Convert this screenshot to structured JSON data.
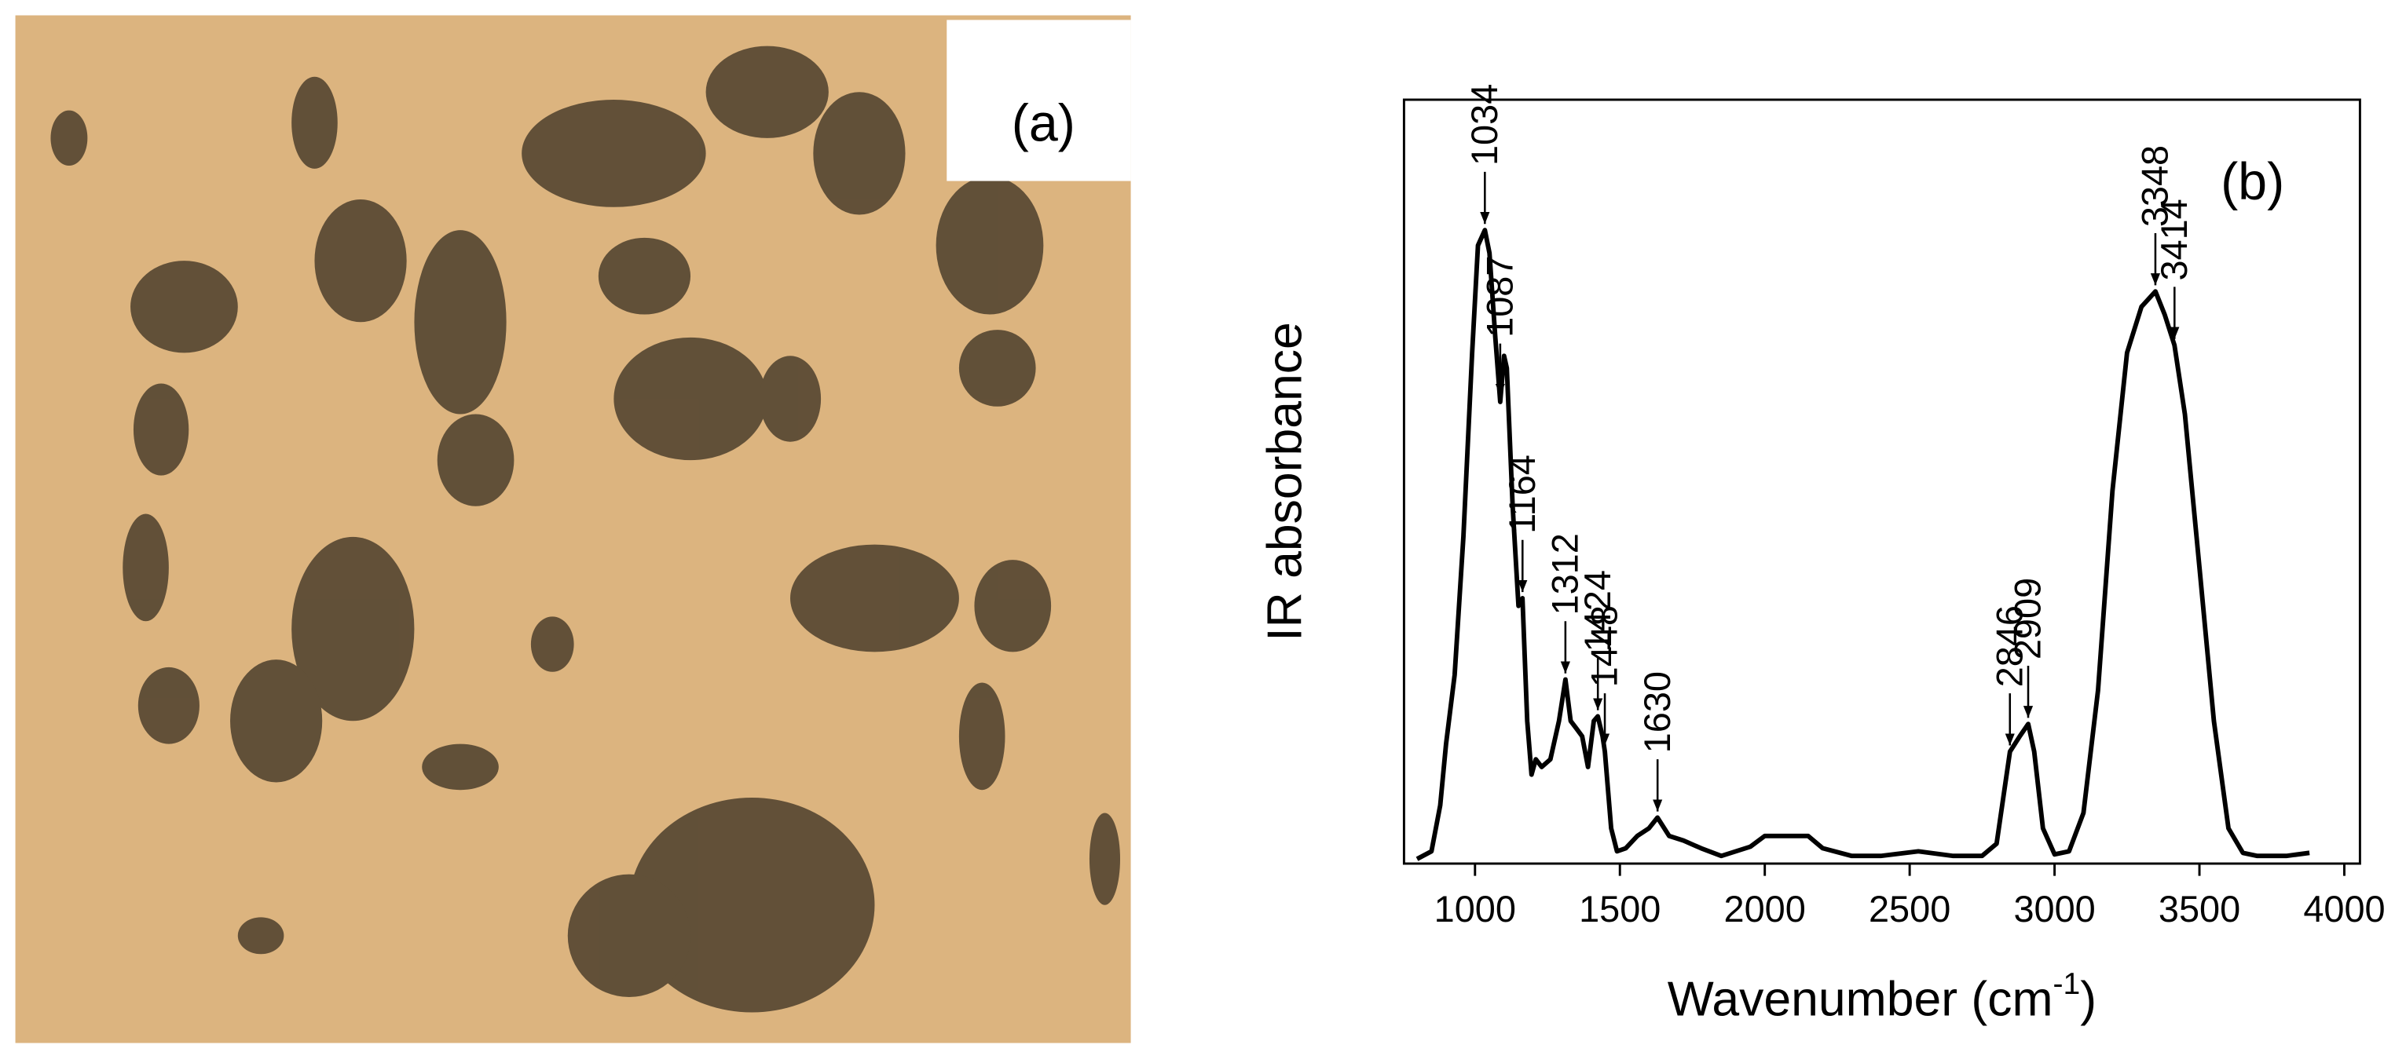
{
  "panel_a": {
    "label": "(a)"
  },
  "chart_data": {
    "type": "line",
    "panel_label": "(b)",
    "xlabel": {
      "text": "Wavenumber (cm",
      "sup": "-1",
      "end": ")"
    },
    "ylabel": "IR absorbance",
    "xlim": [
      755,
      4054
    ],
    "ylim": [
      0,
      498
    ],
    "xticks": [
      1000,
      1500,
      2000,
      2500,
      3000,
      3500,
      4000
    ],
    "series": [
      {
        "name": "IR spectrum",
        "color": "#000000",
        "x": [
          800,
          850,
          880,
          900,
          930,
          960,
          990,
          1010,
          1034,
          1050,
          1070,
          1087,
          1100,
          1110,
          1130,
          1150,
          1164,
          1180,
          1195,
          1210,
          1230,
          1260,
          1290,
          1312,
          1330,
          1350,
          1370,
          1390,
          1410,
          1424,
          1440,
          1448,
          1470,
          1490,
          1520,
          1560,
          1600,
          1630,
          1670,
          1720,
          1780,
          1850,
          1950,
          2000,
          2050,
          2150,
          2200,
          2300,
          2400,
          2530,
          2650,
          2750,
          2800,
          2846,
          2880,
          2909,
          2930,
          2960,
          3000,
          3050,
          3100,
          3150,
          3200,
          3250,
          3300,
          3348,
          3380,
          3414,
          3450,
          3500,
          3550,
          3600,
          3650,
          3700,
          3800,
          3880
        ],
        "values": [
          3,
          8,
          38,
          78,
          123,
          213,
          333,
          403,
          413,
          398,
          343,
          301,
          331,
          323,
          233,
          168,
          173,
          93,
          58,
          68,
          63,
          68,
          93,
          120,
          93,
          88,
          83,
          63,
          93,
          96,
          83,
          73,
          23,
          8,
          10,
          18,
          23,
          30,
          18,
          15,
          10,
          5,
          11,
          18,
          18,
          18,
          10,
          5,
          5,
          8,
          5,
          5,
          13,
          73,
          83,
          91,
          73,
          23,
          6,
          8,
          33,
          113,
          243,
          333,
          363,
          373,
          358,
          338,
          293,
          193,
          93,
          23,
          7,
          5,
          5,
          7
        ]
      }
    ],
    "annotations": [
      {
        "text": "1034",
        "x": 1034
      },
      {
        "text": "1087",
        "x": 1087
      },
      {
        "text": "1164",
        "x": 1164
      },
      {
        "text": "1312",
        "x": 1312
      },
      {
        "text": "1424",
        "x": 1424
      },
      {
        "text": "1448",
        "x": 1448
      },
      {
        "text": "1630",
        "x": 1630
      },
      {
        "text": "2846",
        "x": 2846
      },
      {
        "text": "2909",
        "x": 2909
      },
      {
        "text": "3348",
        "x": 3348
      },
      {
        "text": "3414",
        "x": 3414
      }
    ]
  }
}
